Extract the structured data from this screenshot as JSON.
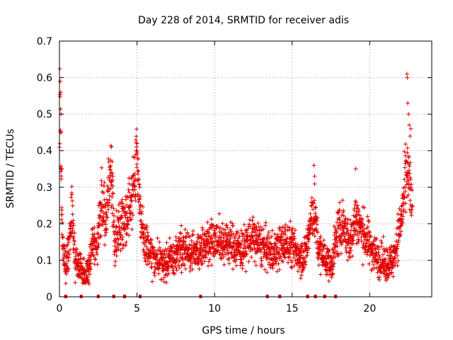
{
  "chart_data": {
    "type": "scatter",
    "title": "Day 228 of 2014, SRMTID for receiver adis",
    "xlabel": "GPS time / hours",
    "ylabel": "SRMTID / TECUs",
    "xlim": [
      0,
      24
    ],
    "ylim": [
      0,
      0.7
    ],
    "xticks": [
      0,
      5,
      10,
      15,
      20
    ],
    "yticks": [
      0,
      0.1,
      0.2,
      0.3,
      0.4,
      0.5,
      0.6,
      0.7
    ],
    "xtick_labels": [
      "0",
      "5",
      "10",
      "15",
      "20"
    ],
    "ytick_labels": [
      "0",
      "0.1",
      "0.2",
      "0.3",
      "0.4",
      "0.5",
      "0.6",
      "0.7"
    ],
    "grid": true,
    "marker": "+",
    "color": "#e00000",
    "series": [
      {
        "name": "SRMTID",
        "trend": [
          [
            0.0,
            0.55
          ],
          [
            0.05,
            0.45
          ],
          [
            0.12,
            0.28
          ],
          [
            0.2,
            0.15
          ],
          [
            0.4,
            0.09
          ],
          [
            0.6,
            0.13
          ],
          [
            0.8,
            0.24
          ],
          [
            1.0,
            0.1
          ],
          [
            1.3,
            0.08
          ],
          [
            1.6,
            0.06
          ],
          [
            1.9,
            0.07
          ],
          [
            2.1,
            0.15
          ],
          [
            2.4,
            0.12
          ],
          [
            2.7,
            0.26
          ],
          [
            3.0,
            0.2
          ],
          [
            3.3,
            0.35
          ],
          [
            3.6,
            0.14
          ],
          [
            3.9,
            0.2
          ],
          [
            4.2,
            0.22
          ],
          [
            4.5,
            0.24
          ],
          [
            4.8,
            0.3
          ],
          [
            5.0,
            0.37
          ],
          [
            5.2,
            0.25
          ],
          [
            5.4,
            0.15
          ],
          [
            5.8,
            0.12
          ],
          [
            6.3,
            0.1
          ],
          [
            6.8,
            0.09
          ],
          [
            7.3,
            0.11
          ],
          [
            7.8,
            0.13
          ],
          [
            8.3,
            0.13
          ],
          [
            8.8,
            0.12
          ],
          [
            9.3,
            0.14
          ],
          [
            9.8,
            0.16
          ],
          [
            10.3,
            0.15
          ],
          [
            10.8,
            0.15
          ],
          [
            11.3,
            0.14
          ],
          [
            11.8,
            0.13
          ],
          [
            12.3,
            0.16
          ],
          [
            12.8,
            0.15
          ],
          [
            13.3,
            0.13
          ],
          [
            13.8,
            0.12
          ],
          [
            14.3,
            0.14
          ],
          [
            14.8,
            0.15
          ],
          [
            15.3,
            0.12
          ],
          [
            15.8,
            0.11
          ],
          [
            16.2,
            0.2
          ],
          [
            16.4,
            0.24
          ],
          [
            16.7,
            0.13
          ],
          [
            17.2,
            0.1
          ],
          [
            17.5,
            0.08
          ],
          [
            17.9,
            0.17
          ],
          [
            18.3,
            0.2
          ],
          [
            18.7,
            0.14
          ],
          [
            19.1,
            0.22
          ],
          [
            19.5,
            0.18
          ],
          [
            19.9,
            0.15
          ],
          [
            20.3,
            0.12
          ],
          [
            20.7,
            0.1
          ],
          [
            21.1,
            0.09
          ],
          [
            21.5,
            0.1
          ],
          [
            21.9,
            0.18
          ],
          [
            22.2,
            0.26
          ],
          [
            22.4,
            0.34
          ],
          [
            22.6,
            0.3
          ],
          [
            22.75,
            0.22
          ]
        ],
        "spikes": [
          [
            0.05,
            0.59
          ],
          [
            0.08,
            0.56
          ],
          [
            0.1,
            0.5
          ],
          [
            0.12,
            0.45
          ],
          [
            0.15,
            0.35
          ],
          [
            3.35,
            0.41
          ],
          [
            3.4,
            0.37
          ],
          [
            3.45,
            0.33
          ],
          [
            4.95,
            0.4
          ],
          [
            5.0,
            0.39
          ],
          [
            5.05,
            0.38
          ],
          [
            16.4,
            0.36
          ],
          [
            16.45,
            0.33
          ],
          [
            19.1,
            0.35
          ],
          [
            22.4,
            0.61
          ],
          [
            22.42,
            0.6
          ],
          [
            22.45,
            0.53
          ],
          [
            22.5,
            0.5
          ],
          [
            22.55,
            0.47
          ],
          [
            22.6,
            0.44
          ],
          [
            22.65,
            0.46
          ]
        ],
        "zero_markers": [
          0.4,
          1.4,
          2.5,
          3.5,
          4.2,
          5.2,
          9.1,
          13.4,
          14.2,
          16.0,
          16.5,
          17.1,
          17.8
        ]
      }
    ]
  }
}
